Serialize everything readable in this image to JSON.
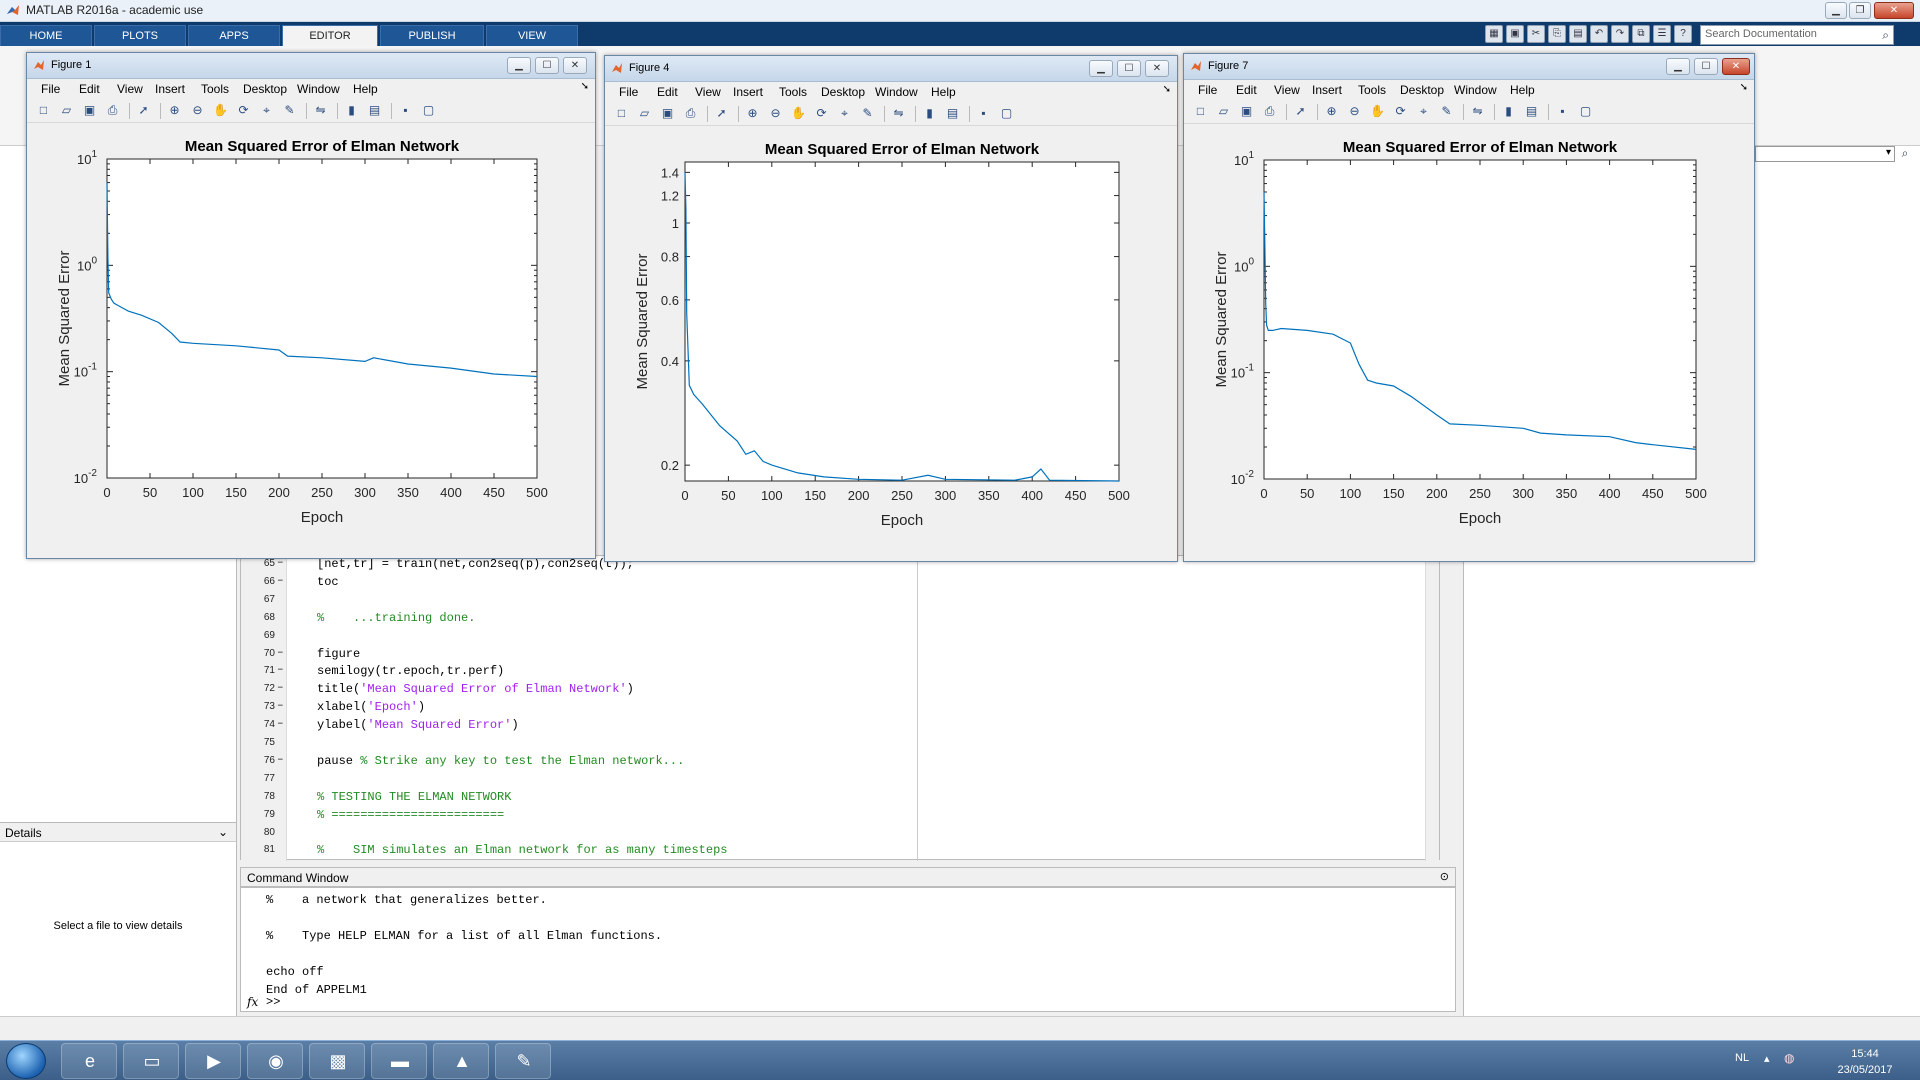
{
  "app": {
    "title": "MATLAB R2016a - academic use",
    "search_placeholder": "Search Documentation"
  },
  "tabs": [
    "HOME",
    "PLOTS",
    "APPS",
    "EDITOR",
    "PUBLISH",
    "VIEW"
  ],
  "active_tab": "EDITOR",
  "figure_menu": [
    "File",
    "Edit",
    "View",
    "Insert",
    "Tools",
    "Desktop",
    "Window",
    "Help"
  ],
  "figures": [
    {
      "title": "Figure 1"
    },
    {
      "title": "Figure 4"
    },
    {
      "title": "Figure 7"
    }
  ],
  "chart_data": [
    {
      "type": "line",
      "title": "Mean Squared Error of Elman Network",
      "xlabel": "Epoch",
      "ylabel": "Mean Squared Error",
      "yscale": "log",
      "xlim": [
        0,
        500
      ],
      "ylim": [
        0.01,
        10
      ],
      "xticks": [
        0,
        50,
        100,
        150,
        200,
        250,
        300,
        350,
        400,
        450,
        500
      ],
      "color": "#0072bd",
      "x": [
        0,
        1,
        2,
        5,
        8,
        15,
        25,
        40,
        60,
        75,
        85,
        100,
        150,
        200,
        210,
        250,
        300,
        310,
        350,
        400,
        450,
        500
      ],
      "y": [
        6.0,
        1.2,
        0.55,
        0.48,
        0.44,
        0.41,
        0.37,
        0.34,
        0.29,
        0.23,
        0.19,
        0.185,
        0.175,
        0.16,
        0.14,
        0.135,
        0.125,
        0.135,
        0.118,
        0.108,
        0.095,
        0.09
      ]
    },
    {
      "type": "line",
      "title": "Mean Squared Error of Elman Network",
      "xlabel": "Epoch",
      "ylabel": "Mean Squared Error",
      "yscale": "log",
      "xlim": [
        0,
        500
      ],
      "ylim": [
        0.18,
        1.5
      ],
      "yticks": [
        0.2,
        0.4,
        0.6,
        0.8,
        1,
        1.2,
        1.4
      ],
      "xticks": [
        0,
        50,
        100,
        150,
        200,
        250,
        300,
        350,
        400,
        450,
        500
      ],
      "color": "#0072bd",
      "x": [
        0,
        1,
        2,
        5,
        10,
        20,
        40,
        60,
        70,
        80,
        90,
        100,
        130,
        160,
        200,
        250,
        280,
        300,
        380,
        400,
        410,
        420,
        500
      ],
      "y": [
        1.4,
        1.1,
        0.55,
        0.34,
        0.32,
        0.3,
        0.26,
        0.235,
        0.215,
        0.22,
        0.205,
        0.2,
        0.19,
        0.185,
        0.182,
        0.181,
        0.187,
        0.182,
        0.181,
        0.185,
        0.195,
        0.181,
        0.18
      ]
    },
    {
      "type": "line",
      "title": "Mean Squared Error of Elman Network",
      "xlabel": "Epoch",
      "ylabel": "Mean Squared Error",
      "yscale": "log",
      "xlim": [
        0,
        500
      ],
      "ylim": [
        0.01,
        10
      ],
      "xticks": [
        0,
        50,
        100,
        150,
        200,
        250,
        300,
        350,
        400,
        450,
        500
      ],
      "color": "#0072bd",
      "x": [
        0,
        1,
        2,
        3,
        5,
        10,
        20,
        50,
        80,
        100,
        110,
        120,
        130,
        150,
        170,
        200,
        215,
        250,
        300,
        320,
        350,
        400,
        430,
        450,
        500
      ],
      "y": [
        5.0,
        1.5,
        0.45,
        0.28,
        0.25,
        0.25,
        0.26,
        0.25,
        0.23,
        0.19,
        0.12,
        0.085,
        0.08,
        0.075,
        0.06,
        0.04,
        0.033,
        0.032,
        0.03,
        0.027,
        0.026,
        0.025,
        0.022,
        0.021,
        0.019
      ]
    }
  ],
  "editor": {
    "lines": [
      {
        "n": "65",
        "parts": [
          {
            "t": "[net,tr] = train(net,con2seq(p),con2seq(t));",
            "c": ""
          }
        ]
      },
      {
        "n": "66",
        "parts": [
          {
            "t": "toc",
            "c": ""
          }
        ]
      },
      {
        "n": "67",
        "parts": []
      },
      {
        "n": "68",
        "parts": [
          {
            "t": "%    ...training done.",
            "c": "cmt"
          }
        ]
      },
      {
        "n": "69",
        "parts": []
      },
      {
        "n": "70",
        "parts": [
          {
            "t": "figure",
            "c": ""
          }
        ]
      },
      {
        "n": "71",
        "parts": [
          {
            "t": "semilogy(tr.epoch,tr.perf)",
            "c": ""
          }
        ]
      },
      {
        "n": "72",
        "parts": [
          {
            "t": "title(",
            "c": ""
          },
          {
            "t": "'Mean Squared Error of Elman Network'",
            "c": "str"
          },
          {
            "t": ")",
            "c": ""
          }
        ]
      },
      {
        "n": "73",
        "parts": [
          {
            "t": "xlabel(",
            "c": ""
          },
          {
            "t": "'Epoch'",
            "c": "str"
          },
          {
            "t": ")",
            "c": ""
          }
        ]
      },
      {
        "n": "74",
        "parts": [
          {
            "t": "ylabel(",
            "c": ""
          },
          {
            "t": "'Mean Squared Error'",
            "c": "str"
          },
          {
            "t": ")",
            "c": ""
          }
        ]
      },
      {
        "n": "75",
        "parts": []
      },
      {
        "n": "76",
        "parts": [
          {
            "t": "pause ",
            "c": ""
          },
          {
            "t": "% Strike any key to test the Elman network...",
            "c": "cmt"
          }
        ]
      },
      {
        "n": "77",
        "parts": []
      },
      {
        "n": "78",
        "parts": [
          {
            "t": "% TESTING THE ELMAN NETWORK",
            "c": "cmt"
          }
        ]
      },
      {
        "n": "79",
        "parts": [
          {
            "t": "% ========================",
            "c": "cmt"
          }
        ]
      },
      {
        "n": "80",
        "parts": []
      },
      {
        "n": "81",
        "parts": [
          {
            "t": "%    SIM simulates an Elman network for as many timesteps",
            "c": "cmt"
          }
        ]
      }
    ],
    "dash_lines": [
      "65",
      "66",
      "70",
      "71",
      "72",
      "73",
      "74",
      "76"
    ]
  },
  "details": {
    "header": "Details",
    "message": "Select a file to view details"
  },
  "command_window": {
    "header": "Command Window",
    "lines": [
      "%    a network that generalizes better.",
      "",
      "%    Type HELP ELMAN for a list of all Elman functions.",
      "",
      "echo off",
      "End of APPELM1"
    ],
    "prompt": ">>",
    "fx_label": "fx"
  },
  "taskbar": {
    "lang": "NL",
    "time": "15:44",
    "date": "23/05/2017"
  }
}
